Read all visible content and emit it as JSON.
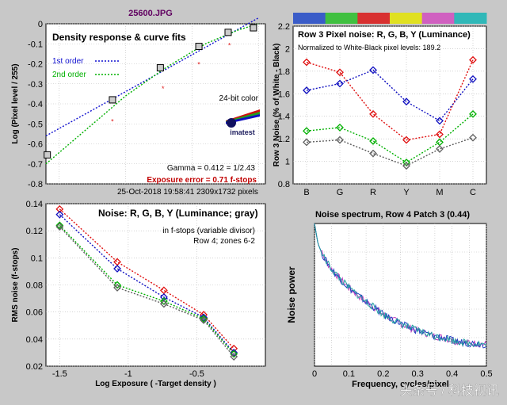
{
  "file_title": "25600.JPG",
  "watermark": "头条号 / 科技视讯",
  "chart_data": [
    {
      "id": "density",
      "type": "scatter",
      "title": "Density response & curve fits",
      "xlabel": "",
      "ylabel": "Log (Pixel level / 255)",
      "xlim": [
        -1.6,
        0.05
      ],
      "ylim": [
        -0.8,
        0
      ],
      "yticks": [
        0,
        -0.1,
        -0.2,
        -0.3,
        -0.4,
        -0.5,
        -0.6,
        -0.7,
        -0.8
      ],
      "yticklabels": [
        "0",
        "-0.1",
        "-0.2",
        "-0.3",
        "-0.4",
        "-0.5",
        "-0.6",
        "-0.7",
        "-0.8"
      ],
      "grid": true,
      "legend": [
        {
          "label": "1st order",
          "color": "#1010d0"
        },
        {
          "label": "2nd order",
          "color": "#00b000"
        }
      ],
      "annotations": {
        "color_mode": "24-bit color",
        "gamma": "Gamma = 0.412 = 1/2.43",
        "exposure_error": "Exposure error = 0.71 f-stops",
        "date": "25-Oct-2018 19:58:41",
        "pixels": "2309x1732 pixels",
        "logo_text": "imatest"
      },
      "points": {
        "x": [
          -1.59,
          -1.1,
          -0.74,
          -0.45,
          -0.23,
          -0.04
        ],
        "y": [
          -0.655,
          -0.38,
          -0.22,
          -0.113,
          -0.043,
          -0.02
        ]
      },
      "red_points": {
        "x": [
          -1.1,
          -0.72,
          -0.45,
          -0.22
        ],
        "y": [
          -0.485,
          -0.32,
          -0.2,
          -0.105
        ]
      },
      "fit_1st": {
        "x": [
          -1.6,
          0.0
        ],
        "y": [
          -0.56,
          0.03
        ]
      },
      "fit_2nd": {
        "x": [
          -1.6,
          -1.3,
          -1.0,
          -0.7,
          -0.4,
          -0.15,
          0.0
        ],
        "y": [
          -0.7,
          -0.53,
          -0.36,
          -0.22,
          -0.1,
          -0.03,
          0.0
        ]
      }
    },
    {
      "id": "pixel_noise",
      "type": "line",
      "title": "Row 3 Pixel noise: R, G, B, Y (Luminance)",
      "subtitle": "Normalized to White-Black pixel levels: 189.2",
      "xlabel": "",
      "ylabel": "Row 3 Noise (% of White - Black)",
      "categories": [
        "B",
        "G",
        "R",
        "Y",
        "M",
        "C"
      ],
      "category_colors": [
        "#3a5cc8",
        "#40c040",
        "#d83030",
        "#e0e020",
        "#d060c0",
        "#30b8b8"
      ],
      "ylim": [
        0.8,
        2.2
      ],
      "yticks": [
        0.8,
        1,
        1.2,
        1.4,
        1.6,
        1.8,
        2,
        2.2
      ],
      "yticklabels": [
        "0.8",
        "1",
        "1.2",
        "1.4",
        "1.6",
        "1.8",
        "2",
        "2.2"
      ],
      "grid": true,
      "series": [
        {
          "name": "R",
          "color": "#e01010",
          "values": [
            1.88,
            1.79,
            1.42,
            1.19,
            1.24,
            1.9
          ]
        },
        {
          "name": "G",
          "color": "#00b000",
          "values": [
            1.27,
            1.3,
            1.18,
            0.99,
            1.17,
            1.42
          ]
        },
        {
          "name": "B",
          "color": "#1010c0",
          "values": [
            1.63,
            1.69,
            1.81,
            1.53,
            1.36,
            1.73
          ]
        },
        {
          "name": "Y",
          "color": "#606060",
          "values": [
            1.17,
            1.19,
            1.07,
            0.96,
            1.11,
            1.21
          ]
        }
      ]
    },
    {
      "id": "rms_noise",
      "type": "line",
      "title": "Noise: R, G, B, Y (Luminance; gray)",
      "notes": [
        "in f-stops (variable divisor)",
        "Row 4; zones 6-2"
      ],
      "xlabel": "Log Exposure ( -Target density )",
      "ylabel": "RMS noise (f-stops)",
      "xlim": [
        -1.6,
        0.0
      ],
      "ylim": [
        0.02,
        0.14
      ],
      "xticks": [
        -1.5,
        -1,
        -0.5
      ],
      "xticklabels": [
        "-1.5",
        "-1",
        "-0.5"
      ],
      "yticks": [
        0.02,
        0.04,
        0.06,
        0.08,
        0.1,
        0.12,
        0.14
      ],
      "yticklabels": [
        "0.02",
        "0.04",
        "0.06",
        "0.08",
        "0.1",
        "0.12",
        "0.14"
      ],
      "grid": true,
      "x": [
        -1.5,
        -1.08,
        -0.74,
        -0.45,
        -0.23
      ],
      "series": [
        {
          "name": "R",
          "color": "#e01010",
          "values": [
            0.136,
            0.097,
            0.076,
            0.058,
            0.033
          ]
        },
        {
          "name": "B",
          "color": "#1010c0",
          "values": [
            0.132,
            0.092,
            0.071,
            0.056,
            0.03
          ]
        },
        {
          "name": "G",
          "color": "#00b000",
          "values": [
            0.124,
            0.08,
            0.068,
            0.055,
            0.029
          ]
        },
        {
          "name": "Y",
          "color": "#606060",
          "values": [
            0.123,
            0.078,
            0.066,
            0.054,
            0.027
          ]
        }
      ]
    },
    {
      "id": "noise_spectrum",
      "type": "line",
      "title": "Noise spectrum, Row 4 Patch 3 (0.44)",
      "xlabel": "Frequency, cycles/pixel",
      "ylabel": "Noise power",
      "xlim": [
        0,
        0.5
      ],
      "ylim": [
        0,
        1
      ],
      "xticks": [
        0,
        0.05,
        0.1,
        0.15,
        0.2,
        0.25,
        0.3,
        0.35,
        0.4,
        0.45,
        0.5
      ],
      "xticklabels": [
        "0",
        "",
        "0.1",
        "",
        "0.2",
        "",
        "0.3",
        "",
        "0.4",
        "",
        "0.5"
      ],
      "yticks": [],
      "yticklabels": [],
      "grid": true,
      "series": [
        {
          "name": "spectrum",
          "color": "#20a0a0",
          "x": [
            0,
            0.01,
            0.02,
            0.03,
            0.05,
            0.075,
            0.1,
            0.125,
            0.15,
            0.175,
            0.2,
            0.225,
            0.25,
            0.275,
            0.3,
            0.325,
            0.35,
            0.375,
            0.4,
            0.425,
            0.45,
            0.475,
            0.5
          ],
          "values": [
            1.0,
            0.86,
            0.8,
            0.75,
            0.68,
            0.61,
            0.55,
            0.5,
            0.45,
            0.41,
            0.36,
            0.33,
            0.3,
            0.27,
            0.25,
            0.23,
            0.21,
            0.2,
            0.18,
            0.17,
            0.16,
            0.16,
            0.15
          ]
        }
      ]
    }
  ]
}
